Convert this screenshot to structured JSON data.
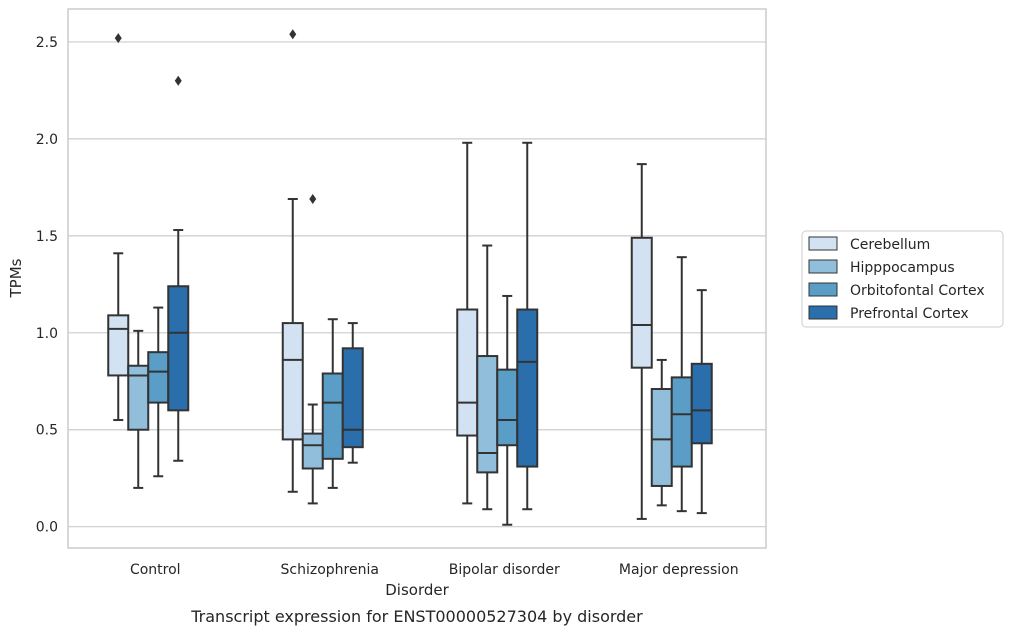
{
  "chart_data": {
    "type": "box",
    "title": "",
    "caption": "Transcript expression for ENST00000527304 by disorder",
    "xlabel": "Disorder",
    "ylabel": "TPMs",
    "ylim": [
      -0.11,
      2.67
    ],
    "yticks": [
      "0.0",
      "0.5",
      "1.0",
      "1.5",
      "2.0",
      "2.5"
    ],
    "ytick_values": [
      0,
      0.5,
      1.0,
      1.5,
      2.0,
      2.5
    ],
    "grid": true,
    "legend_position": "right",
    "categories": [
      "Control",
      "Schizophrenia",
      "Bipolar disorder",
      "Major depression"
    ],
    "series": [
      {
        "name": "Cerebellum",
        "color": "#d2e2f2",
        "boxes": [
          {
            "whisker_low": 0.55,
            "q1": 0.78,
            "median": 1.02,
            "q3": 1.09,
            "whisker_high": 1.41,
            "outliers": [
              2.52
            ]
          },
          {
            "whisker_low": 0.18,
            "q1": 0.45,
            "median": 0.86,
            "q3": 1.05,
            "whisker_high": 1.69,
            "outliers": [
              2.54
            ]
          },
          {
            "whisker_low": 0.12,
            "q1": 0.47,
            "median": 0.64,
            "q3": 1.12,
            "whisker_high": 1.98,
            "outliers": []
          },
          {
            "whisker_low": 0.04,
            "q1": 0.82,
            "median": 1.04,
            "q3": 1.49,
            "whisker_high": 1.87,
            "outliers": []
          }
        ]
      },
      {
        "name": "Hipppocampus",
        "color": "#91bfdb",
        "boxes": [
          {
            "whisker_low": 0.2,
            "q1": 0.5,
            "median": 0.78,
            "q3": 0.83,
            "whisker_high": 1.01,
            "outliers": []
          },
          {
            "whisker_low": 0.12,
            "q1": 0.3,
            "median": 0.42,
            "q3": 0.48,
            "whisker_high": 0.63,
            "outliers": [
              1.69
            ]
          },
          {
            "whisker_low": 0.09,
            "q1": 0.28,
            "median": 0.38,
            "q3": 0.88,
            "whisker_high": 1.45,
            "outliers": []
          },
          {
            "whisker_low": 0.11,
            "q1": 0.21,
            "median": 0.45,
            "q3": 0.71,
            "whisker_high": 0.86,
            "outliers": []
          }
        ]
      },
      {
        "name": "Orbitofontal Cortex",
        "color": "#5a9ec8",
        "boxes": [
          {
            "whisker_low": 0.26,
            "q1": 0.64,
            "median": 0.8,
            "q3": 0.9,
            "whisker_high": 1.13,
            "outliers": []
          },
          {
            "whisker_low": 0.2,
            "q1": 0.35,
            "median": 0.64,
            "q3": 0.79,
            "whisker_high": 1.07,
            "outliers": []
          },
          {
            "whisker_low": 0.01,
            "q1": 0.42,
            "median": 0.55,
            "q3": 0.81,
            "whisker_high": 1.19,
            "outliers": []
          },
          {
            "whisker_low": 0.08,
            "q1": 0.31,
            "median": 0.58,
            "q3": 0.77,
            "whisker_high": 1.39,
            "outliers": []
          }
        ]
      },
      {
        "name": "Prefrontal Cortex",
        "color": "#2a6eab",
        "boxes": [
          {
            "whisker_low": 0.34,
            "q1": 0.6,
            "median": 1.0,
            "q3": 1.24,
            "whisker_high": 1.53,
            "outliers": [
              2.3
            ]
          },
          {
            "whisker_low": 0.33,
            "q1": 0.41,
            "median": 0.5,
            "q3": 0.92,
            "whisker_high": 1.05,
            "outliers": []
          },
          {
            "whisker_low": 0.09,
            "q1": 0.31,
            "median": 0.85,
            "q3": 1.12,
            "whisker_high": 1.98,
            "outliers": []
          },
          {
            "whisker_low": 0.07,
            "q1": 0.43,
            "median": 0.6,
            "q3": 0.84,
            "whisker_high": 1.22,
            "outliers": []
          }
        ]
      }
    ]
  }
}
